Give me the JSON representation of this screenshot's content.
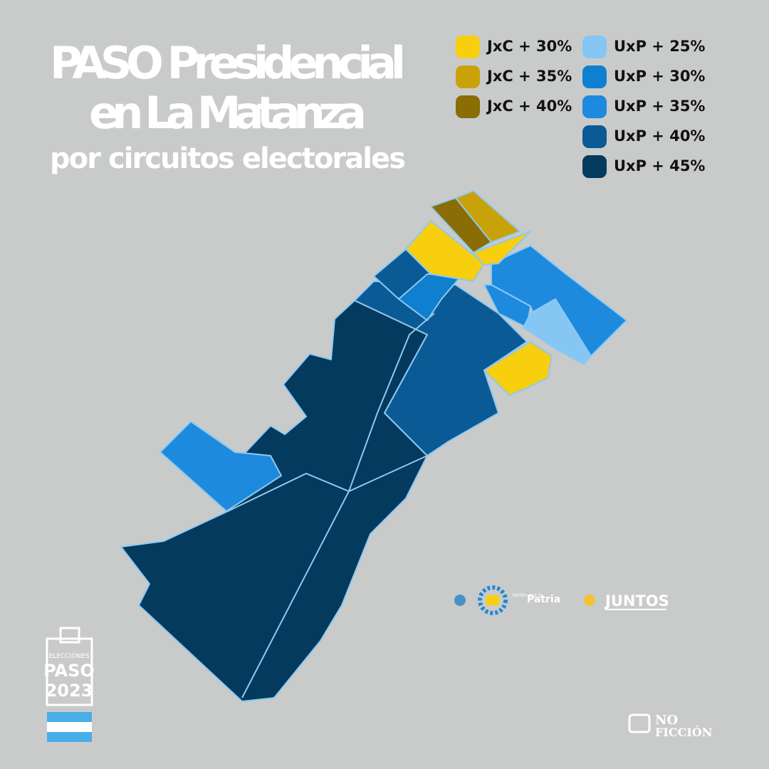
{
  "header": {
    "title_lines": [
      "PASO Presidencial",
      "en La Matanza"
    ],
    "subtitle": "por circuitos electorales"
  },
  "legend": {
    "jxc": [
      {
        "label": "JxC + 30%",
        "color": "#f7cf0f"
      },
      {
        "label": "JxC + 35%",
        "color": "#c9a20a"
      },
      {
        "label": "JxC + 40%",
        "color": "#8a6d05"
      }
    ],
    "uxp": [
      {
        "label": "UxP + 25%",
        "color": "#86c6f4"
      },
      {
        "label": "UxP + 30%",
        "color": "#0f7fd0"
      },
      {
        "label": "UxP + 35%",
        "color": "#1d8ade"
      },
      {
        "label": "UxP + 40%",
        "color": "#0a5a96"
      },
      {
        "label": "UxP + 45%",
        "color": "#033a5e"
      }
    ]
  },
  "logos": {
    "union_small": "Unión por la",
    "union_name": "Patria",
    "juntos": "JUNTOS"
  },
  "badge": {
    "line1": "ELECCIONES",
    "line2": "PASO",
    "line3": "2023"
  },
  "brand": {
    "line1": "NO",
    "line2": "FICCIÓN"
  }
}
